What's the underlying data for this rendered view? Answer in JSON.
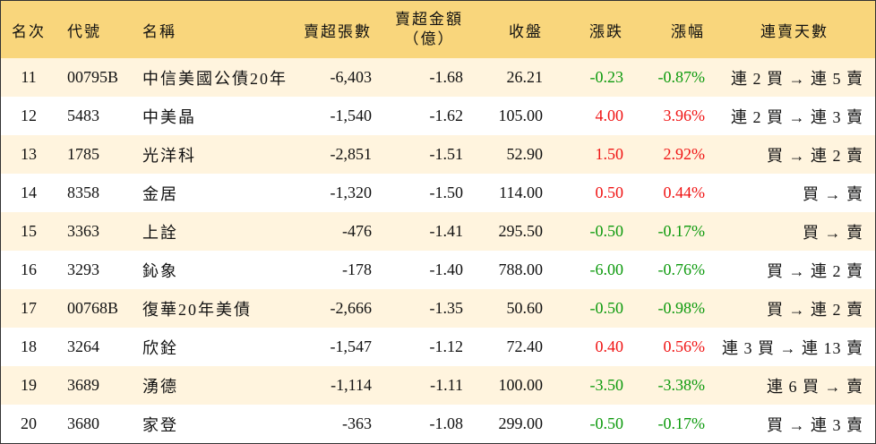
{
  "colors": {
    "header_bg": "#f9d67c",
    "row_alt_bg": "#fff4de",
    "up": "#f01414",
    "down": "#0d9a0d",
    "border": "#333333"
  },
  "header": {
    "rank": "名次",
    "code": "代號",
    "name": "名稱",
    "sell_volume": "賣超張數",
    "sell_amount": "賣超金額",
    "sell_amount_unit": "（億）",
    "close": "收盤",
    "change": "漲跌",
    "change_pct": "漲幅",
    "streak": "連賣天數"
  },
  "rows": [
    {
      "rank": "11",
      "code": "00795B",
      "name": "中信美國公債20年",
      "sell_volume": "-6,403",
      "sell_amount": "-1.68",
      "close": "26.21",
      "change": "-0.23",
      "change_pct": "-0.87%",
      "streak": "連 2 買 → 連 5 賣"
    },
    {
      "rank": "12",
      "code": "5483",
      "name": "中美晶",
      "sell_volume": "-1,540",
      "sell_amount": "-1.62",
      "close": "105.00",
      "change": "4.00",
      "change_pct": "3.96%",
      "streak": "連 2 買 → 連 3 賣"
    },
    {
      "rank": "13",
      "code": "1785",
      "name": "光洋科",
      "sell_volume": "-2,851",
      "sell_amount": "-1.51",
      "close": "52.90",
      "change": "1.50",
      "change_pct": "2.92%",
      "streak": "買 → 連 2 賣"
    },
    {
      "rank": "14",
      "code": "8358",
      "name": "金居",
      "sell_volume": "-1,320",
      "sell_amount": "-1.50",
      "close": "114.00",
      "change": "0.50",
      "change_pct": "0.44%",
      "streak": "買 → 賣"
    },
    {
      "rank": "15",
      "code": "3363",
      "name": "上詮",
      "sell_volume": "-476",
      "sell_amount": "-1.41",
      "close": "295.50",
      "change": "-0.50",
      "change_pct": "-0.17%",
      "streak": "買 → 賣"
    },
    {
      "rank": "16",
      "code": "3293",
      "name": "鈊象",
      "sell_volume": "-178",
      "sell_amount": "-1.40",
      "close": "788.00",
      "change": "-6.00",
      "change_pct": "-0.76%",
      "streak": "買 → 連 2 賣"
    },
    {
      "rank": "17",
      "code": "00768B",
      "name": "復華20年美債",
      "sell_volume": "-2,666",
      "sell_amount": "-1.35",
      "close": "50.60",
      "change": "-0.50",
      "change_pct": "-0.98%",
      "streak": "買 → 連 2 賣"
    },
    {
      "rank": "18",
      "code": "3264",
      "name": "欣銓",
      "sell_volume": "-1,547",
      "sell_amount": "-1.12",
      "close": "72.40",
      "change": "0.40",
      "change_pct": "0.56%",
      "streak": "連 3 買 → 連 13 賣"
    },
    {
      "rank": "19",
      "code": "3689",
      "name": "湧德",
      "sell_volume": "-1,114",
      "sell_amount": "-1.11",
      "close": "100.00",
      "change": "-3.50",
      "change_pct": "-3.38%",
      "streak": "連 6 買 → 賣"
    },
    {
      "rank": "20",
      "code": "3680",
      "name": "家登",
      "sell_volume": "-363",
      "sell_amount": "-1.08",
      "close": "299.00",
      "change": "-0.50",
      "change_pct": "-0.17%",
      "streak": "買 → 連 3 賣"
    }
  ]
}
